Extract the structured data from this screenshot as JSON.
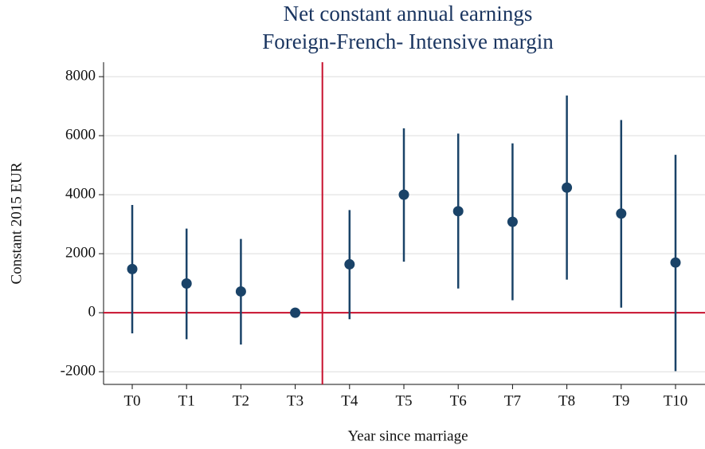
{
  "chart_data": {
    "type": "errorbar",
    "title": [
      "Net constant annual earnings",
      "Foreign-French- Intensive margin"
    ],
    "x_label": "Year since marriage",
    "y_label": "Constant 2015 EUR",
    "categories": [
      "T0",
      "T1",
      "T2",
      "T3",
      "T4",
      "T5",
      "T6",
      "T7",
      "T8",
      "T9",
      "T10"
    ],
    "series": [
      {
        "color": "#1a4368",
        "values": [
          1480,
          990,
          720,
          0,
          1640,
          4000,
          3440,
          3080,
          4240,
          3360,
          1700
        ],
        "lower": [
          -700,
          -900,
          -1080,
          0,
          -220,
          1730,
          820,
          420,
          1120,
          170,
          -1980
        ],
        "upper": [
          3650,
          2850,
          2500,
          0,
          3480,
          6250,
          6070,
          5740,
          7360,
          6530,
          5350
        ]
      }
    ],
    "ylim": [
      -2430,
      8490
    ],
    "yticks": [
      -2000,
      0,
      2000,
      4000,
      6000,
      8000
    ],
    "grid": true,
    "reference_y": 0,
    "reference_x": 3.5,
    "reference_color": "#c8102e"
  }
}
